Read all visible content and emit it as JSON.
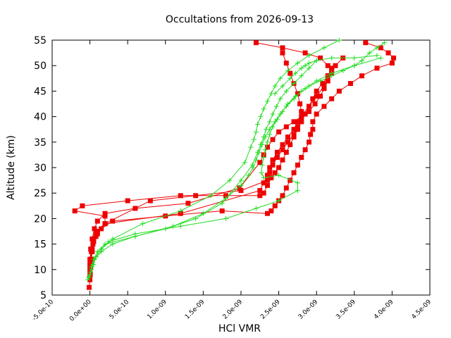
{
  "chart_data": {
    "type": "scatter",
    "title": "Occultations from 2026-09-13",
    "xlabel": "HCl VMR",
    "ylabel": "Altitude (km)",
    "xlim": [
      -5e-10,
      4.5e-09
    ],
    "ylim": [
      5,
      55
    ],
    "grid": false,
    "legend": "none",
    "x_ticks": [
      -5e-10,
      0,
      5e-10,
      1e-09,
      1.5e-09,
      2e-09,
      2.5e-09,
      3e-09,
      3.5e-09,
      4e-09,
      4.5e-09
    ],
    "x_tick_labels": [
      "-5.0e-10",
      "0.0e+00",
      "5.0e-10",
      "1.0e-09",
      "1.5e-09",
      "2.0e-09",
      "2.5e-09",
      "3.0e-09",
      "3.5e-09",
      "4.0e-09",
      "4.5e-09"
    ],
    "y_ticks": [
      5,
      10,
      15,
      20,
      25,
      30,
      35,
      40,
      45,
      50,
      55
    ],
    "y_tick_labels": [
      "5",
      "10",
      "15",
      "20",
      "25",
      "30",
      "35",
      "40",
      "45",
      "50",
      "55"
    ],
    "colors": {
      "red": "#ee0000",
      "green": "#22dd22"
    },
    "series": [
      {
        "color": "red",
        "marker": "square",
        "x": [
          2.2e-09,
          2.55e-09,
          2.85e-09,
          3.05e-09,
          3.15e-09,
          3.2e-09,
          3.15e-09,
          3.1e-09,
          3e-09,
          2.9e-09,
          2.85e-09,
          2.8e-09,
          2.75e-09,
          2.7e-09,
          2.65e-09,
          2.6e-09,
          2.55e-09,
          2.5e-09,
          2.45e-09,
          2.4e-09,
          2.35e-09,
          2.3e-09,
          2.25e-09,
          1.8e-09,
          1.2e-09,
          5e-10,
          -1e-10,
          -2e-10,
          2e-10,
          2e-10,
          1e-10,
          5e-11,
          3e-11,
          2e-11,
          1e-11,
          5e-12,
          0,
          -1e-11
        ],
        "y": [
          54.5,
          53.5,
          52.5,
          51.5,
          50,
          49,
          48,
          46,
          44,
          42,
          40.5,
          39,
          37.5,
          36,
          34.5,
          33,
          31.5,
          30,
          29,
          28,
          26.5,
          25,
          24.5,
          24.5,
          24.5,
          23.5,
          22.5,
          21.5,
          20.5,
          19,
          17,
          15.5,
          13.5,
          12,
          10.5,
          9,
          8,
          6.5
        ]
      },
      {
        "color": "red",
        "marker": "square",
        "x": [
          3.65e-09,
          3.85e-09,
          3.95e-09,
          4.02e-09,
          4e-09,
          3.8e-09,
          3.6e-09,
          3.45e-09,
          3.3e-09,
          3.2e-09,
          3.1e-09,
          3e-09,
          2.95e-09,
          2.95e-09,
          2.92e-09,
          2.9e-09,
          2.85e-09,
          2.8e-09,
          2.75e-09,
          2.7e-09,
          2.65e-09,
          2.6e-09,
          2.55e-09,
          2.5e-09,
          2.45e-09,
          2.4e-09,
          2.35e-09,
          1.75e-09,
          1e-09,
          3e-10,
          1.5e-10,
          8e-11,
          4e-11,
          2e-11,
          1e-11,
          5e-12,
          0
        ],
        "y": [
          54.5,
          53.5,
          52.5,
          51.5,
          50.5,
          49.5,
          48,
          46.5,
          45,
          43.5,
          42,
          40.5,
          39,
          37.5,
          36.5,
          35,
          33.5,
          32,
          30.5,
          29,
          27.5,
          26,
          24.5,
          23.5,
          22.5,
          21.5,
          21,
          21.5,
          20.5,
          19.5,
          18,
          16.5,
          15,
          13.5,
          12,
          10.5,
          9
        ]
      },
      {
        "color": "red",
        "marker": "square",
        "x": [
          3.35e-09,
          3.25e-09,
          3.2e-09,
          3.15e-09,
          3.1e-09,
          3.05e-09,
          2.98e-09,
          2.9e-09,
          2.8e-09,
          2.7e-09,
          2.6e-09,
          2.5e-09,
          2.42e-09,
          2.35e-09,
          2.3e-09,
          2.25e-09,
          1.98e-09,
          1.3e-09,
          6e-10,
          2e-10,
          1e-10,
          6e-11,
          3e-11,
          1e-11,
          0
        ],
        "y": [
          51.5,
          50,
          48.5,
          47,
          45.5,
          44,
          42.5,
          41,
          40,
          39,
          38,
          37,
          35.5,
          34,
          32.5,
          31,
          26,
          23,
          22,
          21,
          19.5,
          18,
          16,
          14,
          11
        ]
      },
      {
        "color": "red",
        "marker": "square",
        "x": [
          2.55e-09,
          2.6e-09,
          2.65e-09,
          2.7e-09,
          2.75e-09,
          2.78e-09,
          2.8e-09,
          2.8e-09,
          2.75e-09,
          2.7e-09,
          2.62e-09,
          2.55e-09,
          2.48e-09,
          2.42e-09,
          2.38e-09,
          2.35e-09,
          2e-09,
          1.4e-09,
          8e-10,
          2e-10,
          8e-11,
          5e-11,
          3e-11,
          1e-11,
          0
        ],
        "y": [
          52.5,
          50.5,
          48.5,
          46.5,
          44.5,
          42.5,
          41,
          39.5,
          38,
          36.5,
          35,
          33.5,
          32,
          30.5,
          29,
          27.5,
          25.5,
          24.5,
          23.5,
          19,
          17.5,
          16,
          14,
          12,
          10
        ]
      },
      {
        "color": "red",
        "marker": "square",
        "x": [
          3.2e-09,
          3.15e-09,
          3.08e-09,
          3e-09,
          2.95e-09,
          2.9e-09,
          2.82e-09,
          2.75e-09,
          2.7e-09,
          2.62e-09,
          2.55e-09,
          2.48e-09,
          2.42e-09,
          2.38e-09,
          2.35e-09,
          2.3e-09,
          2.25e-09,
          1.2e-09,
          2e-10,
          1e-10,
          5e-11,
          2e-11,
          0
        ],
        "y": [
          49.5,
          48,
          46.5,
          45,
          43.5,
          42,
          40.5,
          39,
          37.5,
          36,
          34.5,
          33,
          31.5,
          30,
          28.5,
          27,
          25.5,
          21,
          19,
          17.5,
          16,
          14,
          12
        ]
      },
      {
        "color": "green",
        "marker": "plus",
        "x": [
          3.9e-09,
          3.8e-09,
          3.7e-09,
          3.6e-09,
          3.5e-09,
          3.35e-09,
          3.2e-09,
          3.05e-09,
          2.9e-09,
          2.8e-09,
          2.7e-09,
          2.6e-09,
          2.52e-09,
          2.45e-09,
          2.38e-09,
          2.32e-09,
          2.28e-09,
          2.24e-09,
          2.2e-09,
          2.16e-09,
          2.1e-09,
          2e-09,
          1.8e-09,
          1.5e-09,
          1.1e-09,
          6e-10,
          2e-10,
          1e-10,
          5e-11,
          2e-11,
          0,
          -3e-11
        ],
        "y": [
          54.5,
          53.5,
          52.5,
          51,
          50,
          49,
          48,
          47,
          46,
          45,
          43.5,
          42,
          40.5,
          39,
          37.5,
          36,
          34.5,
          33,
          31.5,
          30,
          28.5,
          26.5,
          24,
          21,
          18.5,
          16.5,
          15,
          13.5,
          12,
          10.5,
          9,
          8
        ]
      },
      {
        "color": "green",
        "marker": "plus",
        "x": [
          3.3e-09,
          3.1e-09,
          2.9e-09,
          2.75e-09,
          2.62e-09,
          2.52e-09,
          2.45e-09,
          2.4e-09,
          2.35e-09,
          2.3e-09,
          2.26e-09,
          2.22e-09,
          2.2e-09,
          2.17e-09,
          2.13e-09,
          2.05e-09,
          1.85e-09,
          1.6e-09,
          1.2e-09,
          7e-10,
          3e-10,
          1.5e-10,
          8e-11,
          4e-11,
          1e-11,
          -2e-11
        ],
        "y": [
          55,
          53.5,
          52,
          50.5,
          49,
          47.5,
          46,
          44.5,
          43,
          41.5,
          40,
          38.5,
          37,
          35.5,
          34,
          31,
          27.5,
          24.5,
          21.5,
          19,
          16,
          14,
          12.5,
          11,
          9.5,
          8.5
        ]
      },
      {
        "color": "green",
        "marker": "plus",
        "x": [
          3.85e-09,
          3.5e-09,
          3.2e-09,
          3e-09,
          2.85e-09,
          2.72e-09,
          2.62e-09,
          2.55e-09,
          2.48e-09,
          2.42e-09,
          2.38e-09,
          2.35e-09,
          2.32e-09,
          2.3e-09,
          2.28e-09,
          2.27e-09,
          2.3e-09,
          2.5e-09,
          2.75e-09,
          2.75e-09,
          2.5e-09,
          2.2e-09,
          1.8e-09,
          1.2e-09,
          6e-10,
          2.5e-10,
          1.5e-10,
          8e-11,
          5e-11,
          2e-11,
          -1e-11
        ],
        "y": [
          51.5,
          50,
          48.5,
          47,
          45.5,
          44,
          42.5,
          41,
          39.5,
          38,
          36.5,
          35,
          33.5,
          32,
          30.5,
          29,
          28,
          28.5,
          27,
          25.5,
          23.5,
          22,
          20,
          18.5,
          17,
          15.5,
          14,
          12.5,
          11,
          10,
          8.5
        ]
      },
      {
        "color": "green",
        "marker": "plus",
        "x": [
          3e-09,
          2.9e-09,
          2.8e-09,
          2.7e-09,
          2.6e-09,
          2.52e-09,
          2.47e-09,
          2.42e-09,
          2.38e-09,
          2.33e-09,
          2.3e-09,
          2.26e-09,
          2.22e-09,
          2.15e-09,
          2e-09,
          1.75e-09,
          1.4e-09,
          1e-09,
          6e-10,
          3e-10,
          1.5e-10,
          6e-11,
          2e-11,
          0
        ],
        "y": [
          51,
          49.5,
          48,
          46.5,
          45,
          43.5,
          42,
          40.5,
          39,
          37.5,
          36,
          34.5,
          33,
          30.5,
          27.5,
          23,
          20,
          18,
          16.5,
          15,
          13.5,
          12,
          10.5,
          9
        ]
      },
      {
        "color": "green",
        "marker": "plus",
        "x": [
          2.45e-09,
          2.55e-09,
          2.65e-09,
          2.72e-09,
          2.8e-09,
          2.85e-09,
          2.9e-09,
          3e-09,
          3.2e-09,
          3.5e-09,
          3.8e-09
        ],
        "y": [
          44.5,
          46,
          47.5,
          48.5,
          49.5,
          50,
          50.5,
          51,
          51.5,
          51.5,
          52
        ]
      }
    ]
  }
}
